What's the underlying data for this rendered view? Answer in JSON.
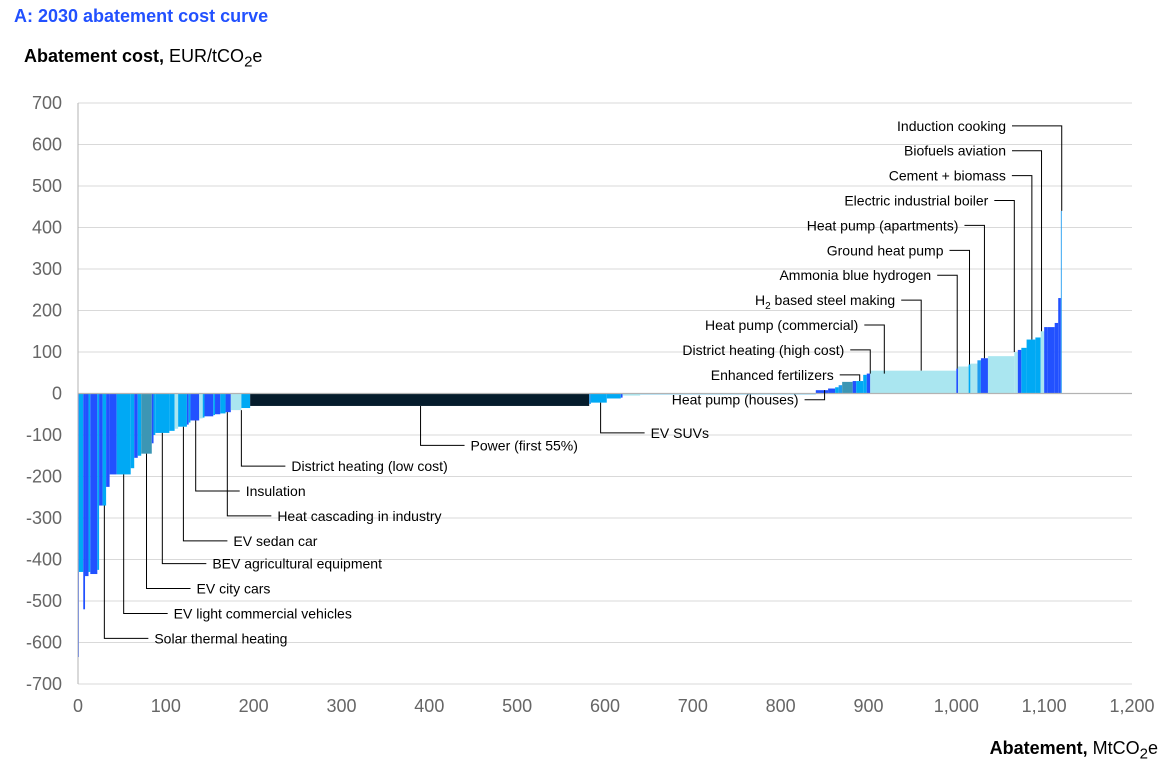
{
  "panel_title": "A: 2030 abatement cost curve",
  "y_title": {
    "bold": "Abatement cost,",
    "unit_pre": "EUR/tCO",
    "unit_sub": "2",
    "unit_post": "e"
  },
  "x_title": {
    "bold": "Abatement,",
    "unit_pre": "MtCO",
    "unit_sub": "2",
    "unit_post": "e"
  },
  "colors": {
    "dark_blue": "#2251ff",
    "mid_blue": "#1f9bef",
    "light_blue": "#00a9f4",
    "steel_blue": "#3c96b4",
    "pale_blue": "#aae6f0",
    "navy": "#051c2c",
    "grid": "#d9d9d9"
  },
  "chart_data": {
    "type": "bar",
    "title": "2030 abatement cost curve",
    "xlabel": "Abatement, MtCO2e",
    "ylabel": "Abatement cost, EUR/tCO2e",
    "xlim": [
      0,
      1200
    ],
    "ylim": [
      -700,
      700
    ],
    "x_ticks": [
      0,
      100,
      200,
      300,
      400,
      500,
      600,
      700,
      800,
      900,
      1000,
      1100,
      1200
    ],
    "x_tick_labels": [
      "0",
      "100",
      "200",
      "300",
      "400",
      "500",
      "600",
      "700",
      "800",
      "900",
      "1,000",
      "1,100",
      "1,200"
    ],
    "y_ticks": [
      700,
      600,
      500,
      400,
      300,
      200,
      100,
      0,
      -100,
      -200,
      -300,
      -400,
      -500,
      -600,
      -700
    ],
    "y_tick_labels": [
      "700",
      "600",
      "500",
      "400",
      "300",
      "200",
      "100",
      "0",
      "-100",
      "-200",
      "-300",
      "-400",
      "-500",
      "-600",
      "-700"
    ],
    "grid": true,
    "bars": [
      {
        "x0": 0,
        "x1": 1,
        "value": -635,
        "color": "dark_blue"
      },
      {
        "x0": 1,
        "x1": 6,
        "value": -430,
        "color": "light_blue"
      },
      {
        "x0": 6,
        "x1": 8,
        "value": -520,
        "color": "dark_blue"
      },
      {
        "x0": 8,
        "x1": 12,
        "value": -440,
        "color": "dark_blue"
      },
      {
        "x0": 12,
        "x1": 14,
        "value": -430,
        "color": "light_blue"
      },
      {
        "x0": 14,
        "x1": 22,
        "value": -435,
        "color": "dark_blue"
      },
      {
        "x0": 22,
        "x1": 24,
        "value": -425,
        "color": "light_blue"
      },
      {
        "x0": 24,
        "x1": 28,
        "value": -270,
        "color": "dark_blue"
      },
      {
        "x0": 28,
        "x1": 32,
        "value": -270,
        "color": "light_blue"
      },
      {
        "x0": 32,
        "x1": 36,
        "value": -225,
        "color": "dark_blue"
      },
      {
        "x0": 36,
        "x1": 44,
        "value": -195,
        "color": "dark_blue"
      },
      {
        "x0": 44,
        "x1": 60,
        "value": -195,
        "color": "light_blue"
      },
      {
        "x0": 60,
        "x1": 64,
        "value": -180,
        "color": "light_blue"
      },
      {
        "x0": 64,
        "x1": 68,
        "value": -155,
        "color": "dark_blue"
      },
      {
        "x0": 68,
        "x1": 72,
        "value": -150,
        "color": "light_blue"
      },
      {
        "x0": 72,
        "x1": 84,
        "value": -145,
        "color": "steel_blue"
      },
      {
        "x0": 84,
        "x1": 86,
        "value": -120,
        "color": "dark_blue"
      },
      {
        "x0": 86,
        "x1": 88,
        "value": -100,
        "color": "light_blue"
      },
      {
        "x0": 88,
        "x1": 104,
        "value": -95,
        "color": "light_blue"
      },
      {
        "x0": 104,
        "x1": 110,
        "value": -90,
        "color": "light_blue"
      },
      {
        "x0": 110,
        "x1": 114,
        "value": -85,
        "color": "pale_blue"
      },
      {
        "x0": 114,
        "x1": 124,
        "value": -80,
        "color": "light_blue"
      },
      {
        "x0": 124,
        "x1": 126,
        "value": -75,
        "color": "dark_blue"
      },
      {
        "x0": 126,
        "x1": 128,
        "value": -70,
        "color": "light_blue"
      },
      {
        "x0": 128,
        "x1": 138,
        "value": -65,
        "color": "dark_blue"
      },
      {
        "x0": 138,
        "x1": 142,
        "value": -60,
        "color": "pale_blue"
      },
      {
        "x0": 142,
        "x1": 144,
        "value": -58,
        "color": "light_blue"
      },
      {
        "x0": 144,
        "x1": 154,
        "value": -55,
        "color": "dark_blue"
      },
      {
        "x0": 154,
        "x1": 156,
        "value": -52,
        "color": "light_blue"
      },
      {
        "x0": 156,
        "x1": 162,
        "value": -50,
        "color": "dark_blue"
      },
      {
        "x0": 162,
        "x1": 168,
        "value": -48,
        "color": "light_blue"
      },
      {
        "x0": 168,
        "x1": 174,
        "value": -45,
        "color": "dark_blue"
      },
      {
        "x0": 174,
        "x1": 186,
        "value": -40,
        "color": "pale_blue"
      },
      {
        "x0": 186,
        "x1": 196,
        "value": -35,
        "color": "light_blue"
      },
      {
        "x0": 196,
        "x1": 582,
        "value": -30,
        "color": "navy"
      },
      {
        "x0": 582,
        "x1": 584,
        "value": -25,
        "color": "mid_blue"
      },
      {
        "x0": 584,
        "x1": 602,
        "value": -22,
        "color": "light_blue"
      },
      {
        "x0": 602,
        "x1": 618,
        "value": -12,
        "color": "light_blue"
      },
      {
        "x0": 618,
        "x1": 620,
        "value": -10,
        "color": "dark_blue"
      },
      {
        "x0": 620,
        "x1": 640,
        "value": -5,
        "color": "pale_blue"
      },
      {
        "x0": 640,
        "x1": 840,
        "value": -1,
        "color": "light_blue"
      },
      {
        "x0": 840,
        "x1": 854,
        "value": 8,
        "color": "dark_blue"
      },
      {
        "x0": 854,
        "x1": 862,
        "value": 12,
        "color": "dark_blue"
      },
      {
        "x0": 862,
        "x1": 866,
        "value": 15,
        "color": "light_blue"
      },
      {
        "x0": 866,
        "x1": 870,
        "value": 20,
        "color": "mid_blue"
      },
      {
        "x0": 870,
        "x1": 882,
        "value": 28,
        "color": "steel_blue"
      },
      {
        "x0": 882,
        "x1": 886,
        "value": 30,
        "color": "dark_blue"
      },
      {
        "x0": 886,
        "x1": 894,
        "value": 30,
        "color": "light_blue"
      },
      {
        "x0": 894,
        "x1": 898,
        "value": 45,
        "color": "light_blue"
      },
      {
        "x0": 898,
        "x1": 902,
        "value": 48,
        "color": "dark_blue"
      },
      {
        "x0": 902,
        "x1": 1000,
        "value": 55,
        "color": "pale_blue"
      },
      {
        "x0": 1000,
        "x1": 1002,
        "value": 60,
        "color": "dark_blue"
      },
      {
        "x0": 1002,
        "x1": 1014,
        "value": 65,
        "color": "pale_blue"
      },
      {
        "x0": 1014,
        "x1": 1016,
        "value": 70,
        "color": "light_blue"
      },
      {
        "x0": 1016,
        "x1": 1024,
        "value": 72,
        "color": "pale_blue"
      },
      {
        "x0": 1024,
        "x1": 1028,
        "value": 80,
        "color": "mid_blue"
      },
      {
        "x0": 1028,
        "x1": 1036,
        "value": 85,
        "color": "dark_blue"
      },
      {
        "x0": 1036,
        "x1": 1066,
        "value": 90,
        "color": "pale_blue"
      },
      {
        "x0": 1066,
        "x1": 1070,
        "value": 100,
        "color": "pale_blue"
      },
      {
        "x0": 1070,
        "x1": 1074,
        "value": 105,
        "color": "dark_blue"
      },
      {
        "x0": 1074,
        "x1": 1080,
        "value": 110,
        "color": "light_blue"
      },
      {
        "x0": 1080,
        "x1": 1090,
        "value": 130,
        "color": "light_blue"
      },
      {
        "x0": 1090,
        "x1": 1096,
        "value": 135,
        "color": "light_blue"
      },
      {
        "x0": 1096,
        "x1": 1100,
        "value": 150,
        "color": "pale_blue"
      },
      {
        "x0": 1100,
        "x1": 1104,
        "value": 160,
        "color": "dark_blue"
      },
      {
        "x0": 1104,
        "x1": 1112,
        "value": 160,
        "color": "dark_blue"
      },
      {
        "x0": 1112,
        "x1": 1116,
        "value": 170,
        "color": "dark_blue"
      },
      {
        "x0": 1116,
        "x1": 1119,
        "value": 230,
        "color": "dark_blue"
      },
      {
        "x0": 1119,
        "x1": 1120,
        "value": 440,
        "color": "mid_blue"
      }
    ],
    "annotations_top": [
      {
        "text": "Induction cooking",
        "label_y": 645,
        "target_x": 1120,
        "target_y": 440
      },
      {
        "text": "Biofuels aviation",
        "label_y": 585,
        "target_x": 1097,
        "target_y": 150
      },
      {
        "text": "Cement + biomass",
        "label_y": 525,
        "target_x": 1086,
        "target_y": 130
      },
      {
        "text": "Electric industrial boiler",
        "label_y": 465,
        "target_x": 1066,
        "target_y": 100
      },
      {
        "text": "Heat pump (apartments)",
        "label_y": 405,
        "target_x": 1032,
        "target_y": 85
      },
      {
        "text": "Ground heat pump",
        "label_y": 345,
        "target_x": 1015,
        "target_y": 70
      },
      {
        "text": "Ammonia blue hydrogen",
        "label_y": 285,
        "target_x": 1001,
        "target_y": 60
      },
      {
        "text_pre": "H",
        "text_sub": "2",
        "text_post": " based steel making",
        "label_y": 225,
        "target_x": 960,
        "target_y": 55
      },
      {
        "text": "Heat pump (commercial)",
        "label_y": 165,
        "target_x": 918,
        "target_y": 48
      },
      {
        "text": "District heating (high cost)",
        "label_y": 105,
        "target_x": 902,
        "target_y": 48
      },
      {
        "text": "Enhanced fertilizers",
        "label_y": 45,
        "target_x": 890,
        "target_y": 30
      },
      {
        "text": "Heat pump (houses)",
        "label_y": -15,
        "target_x": 850,
        "target_y": 8
      }
    ],
    "annotations_bottom": [
      {
        "text": "EV SUVs",
        "label_y": -95,
        "target_x": 595,
        "target_y": -22
      },
      {
        "text": "Power (first 55%)",
        "label_y": -125,
        "target_x": 390,
        "target_y": -30
      },
      {
        "text": "District heating (low cost)",
        "label_y": -175,
        "target_x": 186,
        "target_y": -40
      },
      {
        "text": "Insulation",
        "label_y": -235,
        "target_x": 134,
        "target_y": -65
      },
      {
        "text": "Heat cascading in industry",
        "label_y": -295,
        "target_x": 170,
        "target_y": -45
      },
      {
        "text": "EV sedan car",
        "label_y": -355,
        "target_x": 120,
        "target_y": -80
      },
      {
        "text": "BEV agricultural equipment",
        "label_y": -410,
        "target_x": 96,
        "target_y": -95
      },
      {
        "text": "EV city cars",
        "label_y": -470,
        "target_x": 78,
        "target_y": -145
      },
      {
        "text": "EV light commercial vehicles",
        "label_y": -530,
        "target_x": 52,
        "target_y": -195
      },
      {
        "text": "Solar thermal heating",
        "label_y": -590,
        "target_x": 30,
        "target_y": -270
      }
    ]
  }
}
